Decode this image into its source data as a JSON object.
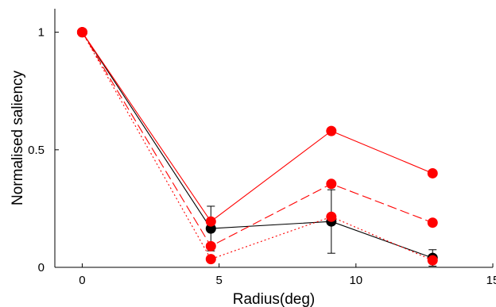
{
  "chart_data": {
    "type": "line",
    "title": "",
    "xlabel": "Radius(deg)",
    "ylabel": "Normalised saliency",
    "xlim": [
      -1,
      15
    ],
    "ylim": [
      0,
      1.1
    ],
    "xticks": [
      {
        "value": 0,
        "label": "0"
      },
      {
        "value": 5,
        "label": "5"
      },
      {
        "value": 10,
        "label": "10"
      },
      {
        "value": 15,
        "label": "15"
      }
    ],
    "yticks": [
      {
        "value": 0,
        "label": "0"
      },
      {
        "value": 0.5,
        "label": "0.5"
      },
      {
        "value": 1,
        "label": "1"
      }
    ],
    "grid": false,
    "legend": "none",
    "series": [
      {
        "color": "#000000",
        "line_style": "solid",
        "marker": "circle",
        "x": [
          0,
          4.7,
          9.1,
          12.8
        ],
        "y": [
          1.0,
          0.165,
          0.195,
          0.04
        ],
        "error": [
          0,
          0.095,
          0.135,
          0.035
        ]
      },
      {
        "color": "#ff0000",
        "line_style": "solid",
        "marker": "circle",
        "x": [
          0,
          4.7,
          9.1,
          12.8
        ],
        "y": [
          1.0,
          0.195,
          0.58,
          0.4
        ]
      },
      {
        "color": "#ff0000",
        "line_style": "dashed",
        "marker": "circle",
        "x": [
          0,
          4.7,
          9.1,
          12.8
        ],
        "y": [
          1.0,
          0.09,
          0.355,
          0.19
        ]
      },
      {
        "color": "#ff0000",
        "line_style": "dotted",
        "marker": "circle",
        "x": [
          0,
          4.7,
          9.1,
          12.8
        ],
        "y": [
          1.0,
          0.035,
          0.215,
          0.03
        ]
      }
    ]
  }
}
